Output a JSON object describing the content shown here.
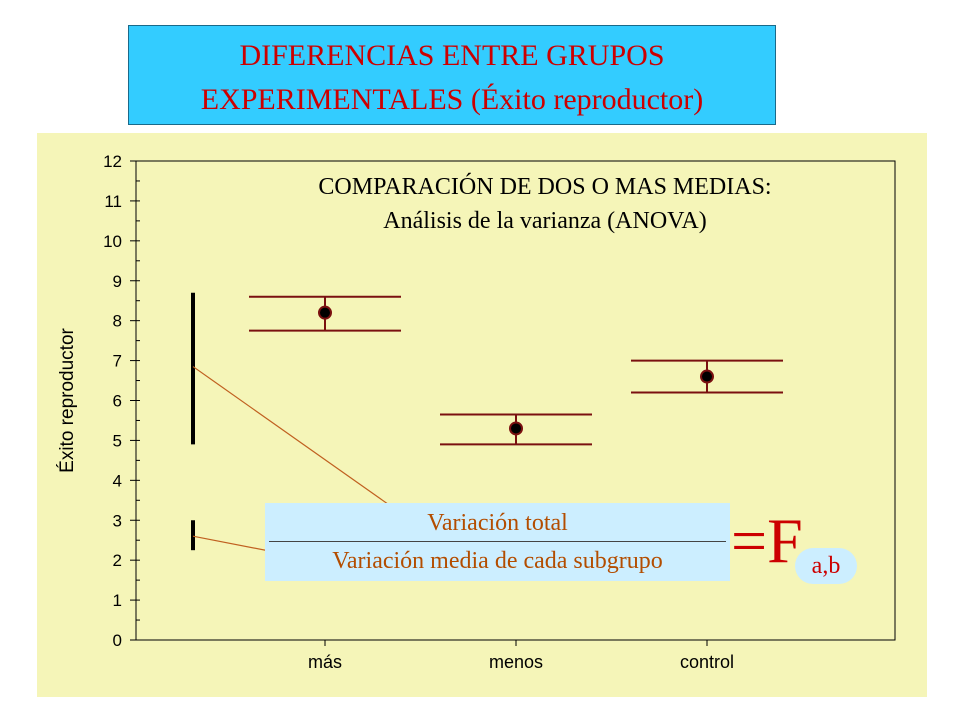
{
  "title": {
    "line1": "DIFERENCIAS ENTRE GRUPOS",
    "line2": "EXPERIMENTALES (Éxito reproductor)"
  },
  "subtitle": {
    "line1": "COMPARACIÓN DE DOS O MAS MEDIAS:",
    "line2": "Análisis de la varianza (ANOVA)"
  },
  "formula": {
    "numerator": "Variación total",
    "denominator": "Variación media de cada subgrupo",
    "equals": "=F",
    "subscript": "a,b"
  },
  "colors": {
    "panel": "#f5f5b8",
    "title_box": "#33ccff",
    "title_text": "#cc0000",
    "bars": "#7a1010",
    "arrows": "#c06020"
  },
  "chart_data": {
    "type": "scatter",
    "ylabel": "Éxito reproductor",
    "xlabel": "",
    "ylim": [
      0,
      12
    ],
    "yticks": [
      "0",
      "1",
      "2",
      "3",
      "4",
      "5",
      "6",
      "7",
      "8",
      "9",
      "10",
      "11",
      "12"
    ],
    "categories": [
      "más",
      "menos",
      "control"
    ],
    "series": [
      {
        "means": [
          8.2,
          5.3,
          6.6
        ],
        "upper": [
          8.6,
          5.65,
          7.0
        ],
        "lower": [
          7.75,
          4.9,
          6.2
        ]
      }
    ],
    "variation_bars": [
      {
        "label": "Variación total",
        "from": 4.9,
        "to": 8.7
      },
      {
        "label": "Variación media de cada subgrupo",
        "from": 2.25,
        "to": 3.0
      }
    ],
    "grid": false
  }
}
